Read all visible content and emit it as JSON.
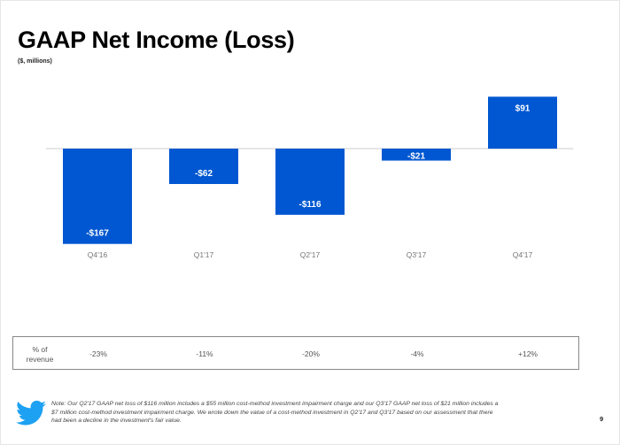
{
  "page": {
    "title": "GAAP Net Income (Loss)",
    "subtitle": "($, millions)",
    "page_number": "9",
    "bar_color": "#0057d1",
    "baseline_color": "#d8d8d8"
  },
  "chart_data": {
    "type": "bar",
    "title": "GAAP Net Income (Loss)",
    "subtitle": "($, millions)",
    "xlabel": "",
    "ylabel": "",
    "categories": [
      "Q4'16",
      "Q1'17",
      "Q2'17",
      "Q3'17",
      "Q4'17"
    ],
    "values": [
      -167,
      -62,
      -116,
      -21,
      91
    ],
    "data_labels": [
      "-$167",
      "-$62",
      "-$116",
      "-$21",
      "$91"
    ],
    "ylim": [
      -167,
      91
    ],
    "grid": false,
    "legend": "none"
  },
  "revenue_row": {
    "header_line1": "% of",
    "header_line2": "revenue",
    "values": [
      "-23%",
      "-11%",
      "-20%",
      "-4%",
      "+12%"
    ]
  },
  "footer": {
    "logo_icon": "twitter-bird-icon",
    "logo_color": "#1da1f2",
    "note_line1": "Note: Our Q2'17 GAAP net loss of $116 million includes a $55 million cost-method investment impairment charge and our Q3'17 GAAP net loss of $21 million includes a",
    "note_line2": "$7 million cost-method investment impairment charge.  We wrote down the value of a cost-method investment in Q2'17 and Q3'17 based on our assessment that there",
    "note_line3": "had been a decline in the investment's fair value."
  }
}
